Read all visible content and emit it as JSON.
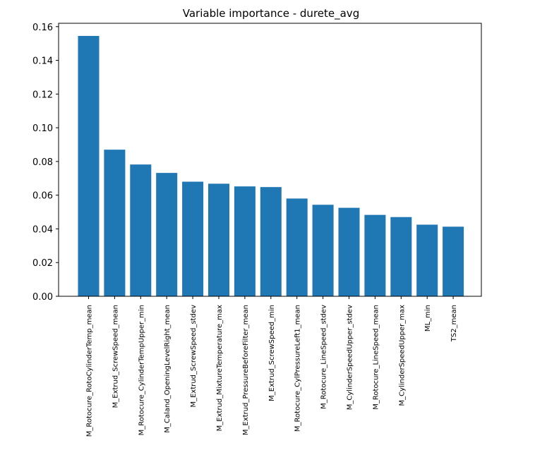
{
  "chart_data": {
    "type": "bar",
    "title": "Variable importance - durete_avg",
    "xlabel": "",
    "ylabel": "",
    "ylim": [
      0,
      0.162
    ],
    "yticks": [
      "0.00",
      "0.02",
      "0.04",
      "0.06",
      "0.08",
      "0.10",
      "0.12",
      "0.14",
      "0.16"
    ],
    "bar_color": "#1f77b4",
    "grid": false,
    "categories": [
      "M_Rotocure_RotoCylinderTemp_mean",
      "M_Extrud_ScrewSpeed_mean",
      "M_Rotocure_CylinderTempUpper_min",
      "M_Caland_OpeningLevelRight_mean",
      "M_Extrud_ScrewSpeed_stdev",
      "M_Extrud_MixtureTemperature_max",
      "M_Extrud_PressureBeforeFilter_mean",
      "M_Extrud_ScrewSpeed_min",
      "M_Rotocure_CylPressureLeft1_mean",
      "M_Rotocure_LineSpeed_stdev",
      "M_CylinderSpeedUpper_stdev",
      "M_Rotocure_LineSpeed_mean",
      "M_CylinderSpeedUpper_max",
      "ML_min",
      "TS2_mean"
    ],
    "values": [
      0.1545,
      0.087,
      0.0782,
      0.0732,
      0.068,
      0.0668,
      0.0652,
      0.0648,
      0.058,
      0.0543,
      0.0525,
      0.0483,
      0.047,
      0.0425,
      0.0413
    ]
  }
}
